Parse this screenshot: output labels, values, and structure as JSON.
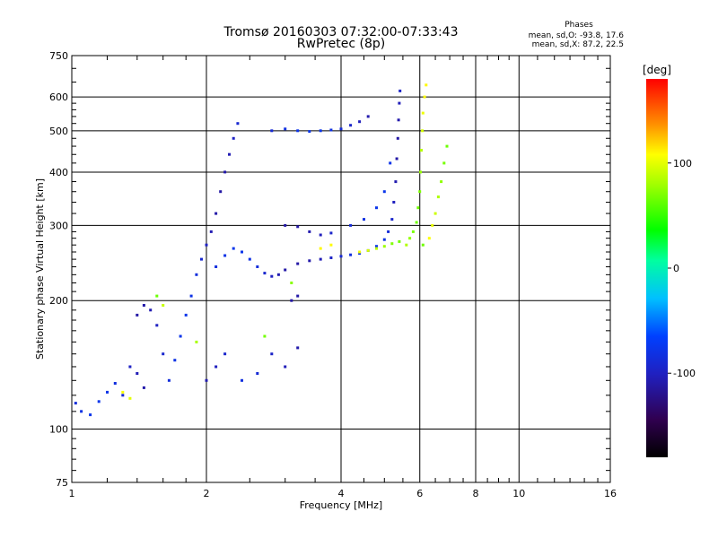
{
  "chart_data": {
    "type": "scatter",
    "title": "Tromsø 20160303 07:32:00-07:33:43",
    "subtitle": "RwPretec (8p)",
    "xlabel": "Frequency [MHz]",
    "ylabel": "Stationary phase Virtual Height [km]",
    "x_scale": "log",
    "y_scale": "log",
    "xlim": [
      1,
      16
    ],
    "ylim": [
      75,
      750
    ],
    "x_ticks": [
      1,
      2,
      4,
      6,
      8,
      10,
      16
    ],
    "y_ticks": [
      75,
      100,
      200,
      300,
      400,
      500,
      600,
      750
    ],
    "x_gridlines": [
      2,
      4,
      6,
      8,
      10
    ],
    "y_gridlines": [
      100,
      200,
      300,
      400,
      500,
      600
    ],
    "grid": true,
    "stats": {
      "header": "Phases",
      "line_o": "mean, sd,O: -93.8, 17.6",
      "line_x": "mean, sd,X:  87.2, 22.5"
    },
    "colorbar": {
      "label": "[deg]",
      "range": [
        -180,
        180
      ],
      "ticks": [
        100,
        0,
        -100
      ],
      "colormap": "rainbow"
    },
    "series": [
      {
        "phase_group": "O",
        "color_mean": -93.8,
        "color_sd": 17.6,
        "points": [
          [
            1.02,
            115
          ],
          [
            1.05,
            110
          ],
          [
            1.1,
            108
          ],
          [
            1.15,
            116
          ],
          [
            1.2,
            122
          ],
          [
            1.25,
            128
          ],
          [
            1.3,
            120
          ],
          [
            1.35,
            140
          ],
          [
            1.4,
            135
          ],
          [
            1.45,
            125
          ],
          [
            1.4,
            185
          ],
          [
            1.45,
            195
          ],
          [
            1.5,
            190
          ],
          [
            1.55,
            175
          ],
          [
            1.6,
            150
          ],
          [
            1.65,
            130
          ],
          [
            1.7,
            145
          ],
          [
            1.75,
            165
          ],
          [
            1.8,
            185
          ],
          [
            1.85,
            205
          ],
          [
            1.9,
            230
          ],
          [
            1.95,
            250
          ],
          [
            2.0,
            270
          ],
          [
            2.05,
            290
          ],
          [
            2.1,
            320
          ],
          [
            2.15,
            360
          ],
          [
            2.2,
            400
          ],
          [
            2.25,
            440
          ],
          [
            2.3,
            480
          ],
          [
            2.35,
            520
          ],
          [
            2.1,
            240
          ],
          [
            2.2,
            255
          ],
          [
            2.3,
            265
          ],
          [
            2.4,
            260
          ],
          [
            2.5,
            250
          ],
          [
            2.6,
            240
          ],
          [
            2.7,
            232
          ],
          [
            2.8,
            228
          ],
          [
            2.9,
            230
          ],
          [
            3.0,
            236
          ],
          [
            3.2,
            244
          ],
          [
            3.4,
            248
          ],
          [
            3.6,
            250
          ],
          [
            3.8,
            252
          ],
          [
            4.0,
            254
          ],
          [
            4.2,
            256
          ],
          [
            4.4,
            258
          ],
          [
            4.6,
            262
          ],
          [
            4.8,
            268
          ],
          [
            5.0,
            278
          ],
          [
            5.1,
            290
          ],
          [
            5.2,
            310
          ],
          [
            5.25,
            340
          ],
          [
            5.3,
            380
          ],
          [
            5.33,
            430
          ],
          [
            5.36,
            480
          ],
          [
            5.38,
            530
          ],
          [
            5.4,
            580
          ],
          [
            5.42,
            620
          ],
          [
            2.8,
            500
          ],
          [
            3.0,
            505
          ],
          [
            3.2,
            500
          ],
          [
            3.4,
            498
          ],
          [
            3.6,
            500
          ],
          [
            3.8,
            502
          ],
          [
            4.0,
            505
          ],
          [
            4.2,
            515
          ],
          [
            4.4,
            525
          ],
          [
            4.6,
            540
          ],
          [
            3.0,
            300
          ],
          [
            3.2,
            298
          ],
          [
            3.4,
            290
          ],
          [
            3.6,
            285
          ],
          [
            3.8,
            288
          ],
          [
            4.2,
            300
          ],
          [
            4.5,
            310
          ],
          [
            4.8,
            330
          ],
          [
            5.0,
            360
          ],
          [
            5.15,
            420
          ],
          [
            2.4,
            130
          ],
          [
            2.6,
            135
          ],
          [
            2.8,
            150
          ],
          [
            3.0,
            140
          ],
          [
            3.2,
            155
          ],
          [
            3.1,
            200
          ],
          [
            3.2,
            205
          ],
          [
            2.0,
            130
          ],
          [
            2.1,
            140
          ],
          [
            2.2,
            150
          ]
        ]
      },
      {
        "phase_group": "X",
        "color_mean": 87.2,
        "color_sd": 22.5,
        "points": [
          [
            5.6,
            270
          ],
          [
            5.7,
            280
          ],
          [
            5.8,
            290
          ],
          [
            5.9,
            305
          ],
          [
            5.95,
            330
          ],
          [
            6.0,
            360
          ],
          [
            6.02,
            400
          ],
          [
            6.05,
            450
          ],
          [
            6.08,
            500
          ],
          [
            6.1,
            550
          ],
          [
            6.15,
            600
          ],
          [
            6.2,
            640
          ],
          [
            6.3,
            280
          ],
          [
            6.4,
            300
          ],
          [
            6.5,
            320
          ],
          [
            6.6,
            350
          ],
          [
            6.7,
            380
          ],
          [
            6.8,
            420
          ],
          [
            6.9,
            460
          ],
          [
            5.4,
            275
          ],
          [
            5.2,
            272
          ],
          [
            5.0,
            268
          ],
          [
            4.8,
            265
          ],
          [
            4.6,
            262
          ],
          [
            4.4,
            260
          ],
          [
            3.8,
            270
          ],
          [
            3.6,
            265
          ],
          [
            1.3,
            122
          ],
          [
            1.35,
            118
          ],
          [
            1.6,
            195
          ],
          [
            1.9,
            160
          ],
          [
            3.1,
            220
          ],
          [
            2.7,
            165
          ],
          [
            1.55,
            205
          ],
          [
            6.1,
            270
          ]
        ]
      }
    ]
  }
}
